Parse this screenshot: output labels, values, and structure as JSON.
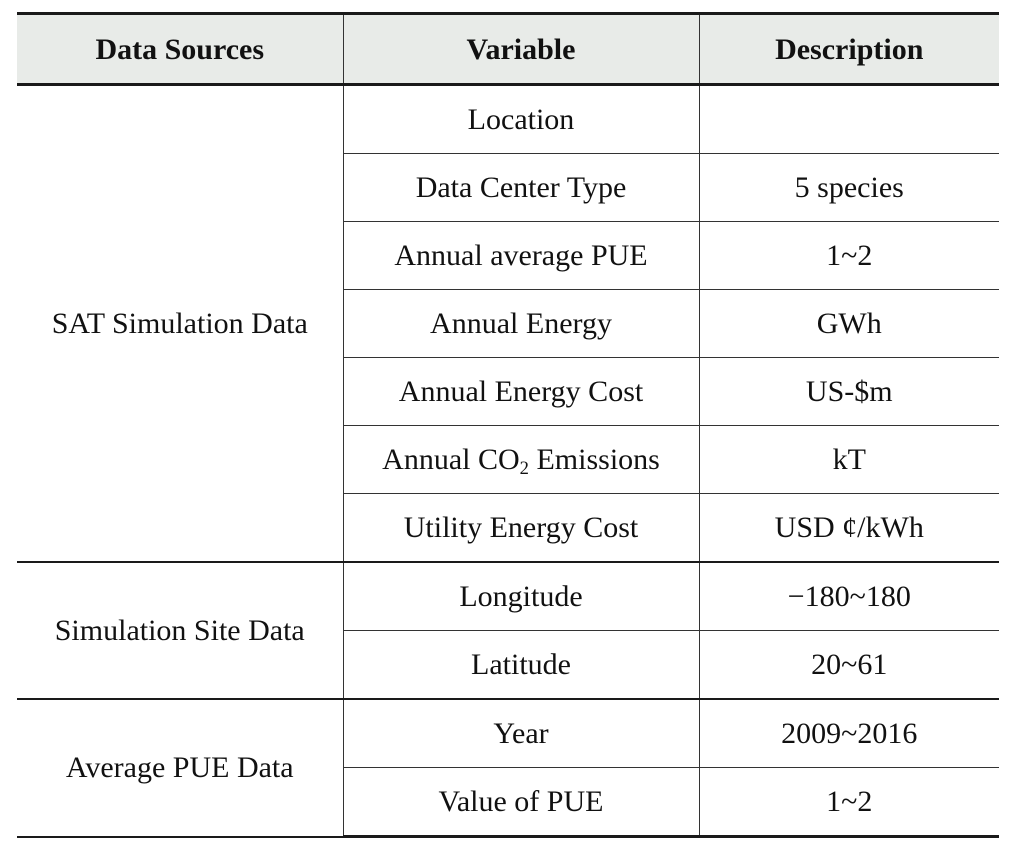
{
  "header": {
    "col_sources": "Data Sources",
    "col_variable": "Variable",
    "col_description": "Description"
  },
  "groups": [
    {
      "source": "SAT Simulation Data",
      "rows": [
        {
          "variable": "Location",
          "description": ""
        },
        {
          "variable": "Data Center Type",
          "description": "5 species"
        },
        {
          "variable": "Annual average PUE",
          "description": "1~2"
        },
        {
          "variable": "Annual Energy",
          "description": "GWh"
        },
        {
          "variable": "Annual Energy Cost",
          "description": "US-$m"
        },
        {
          "variable_prefix": "Annual CO",
          "variable_sub": "2",
          "variable_suffix": " Emissions",
          "description": "kT"
        },
        {
          "variable": "Utility Energy Cost",
          "description": "USD ¢/kWh"
        }
      ]
    },
    {
      "source": "Simulation Site Data",
      "rows": [
        {
          "variable": "Longitude",
          "description": "−180~180"
        },
        {
          "variable": "Latitude",
          "description": "20~61"
        }
      ]
    },
    {
      "source": "Average PUE Data",
      "rows": [
        {
          "variable": "Year",
          "description": "2009~2016"
        },
        {
          "variable": "Value of PUE",
          "description": "1~2"
        }
      ]
    }
  ]
}
